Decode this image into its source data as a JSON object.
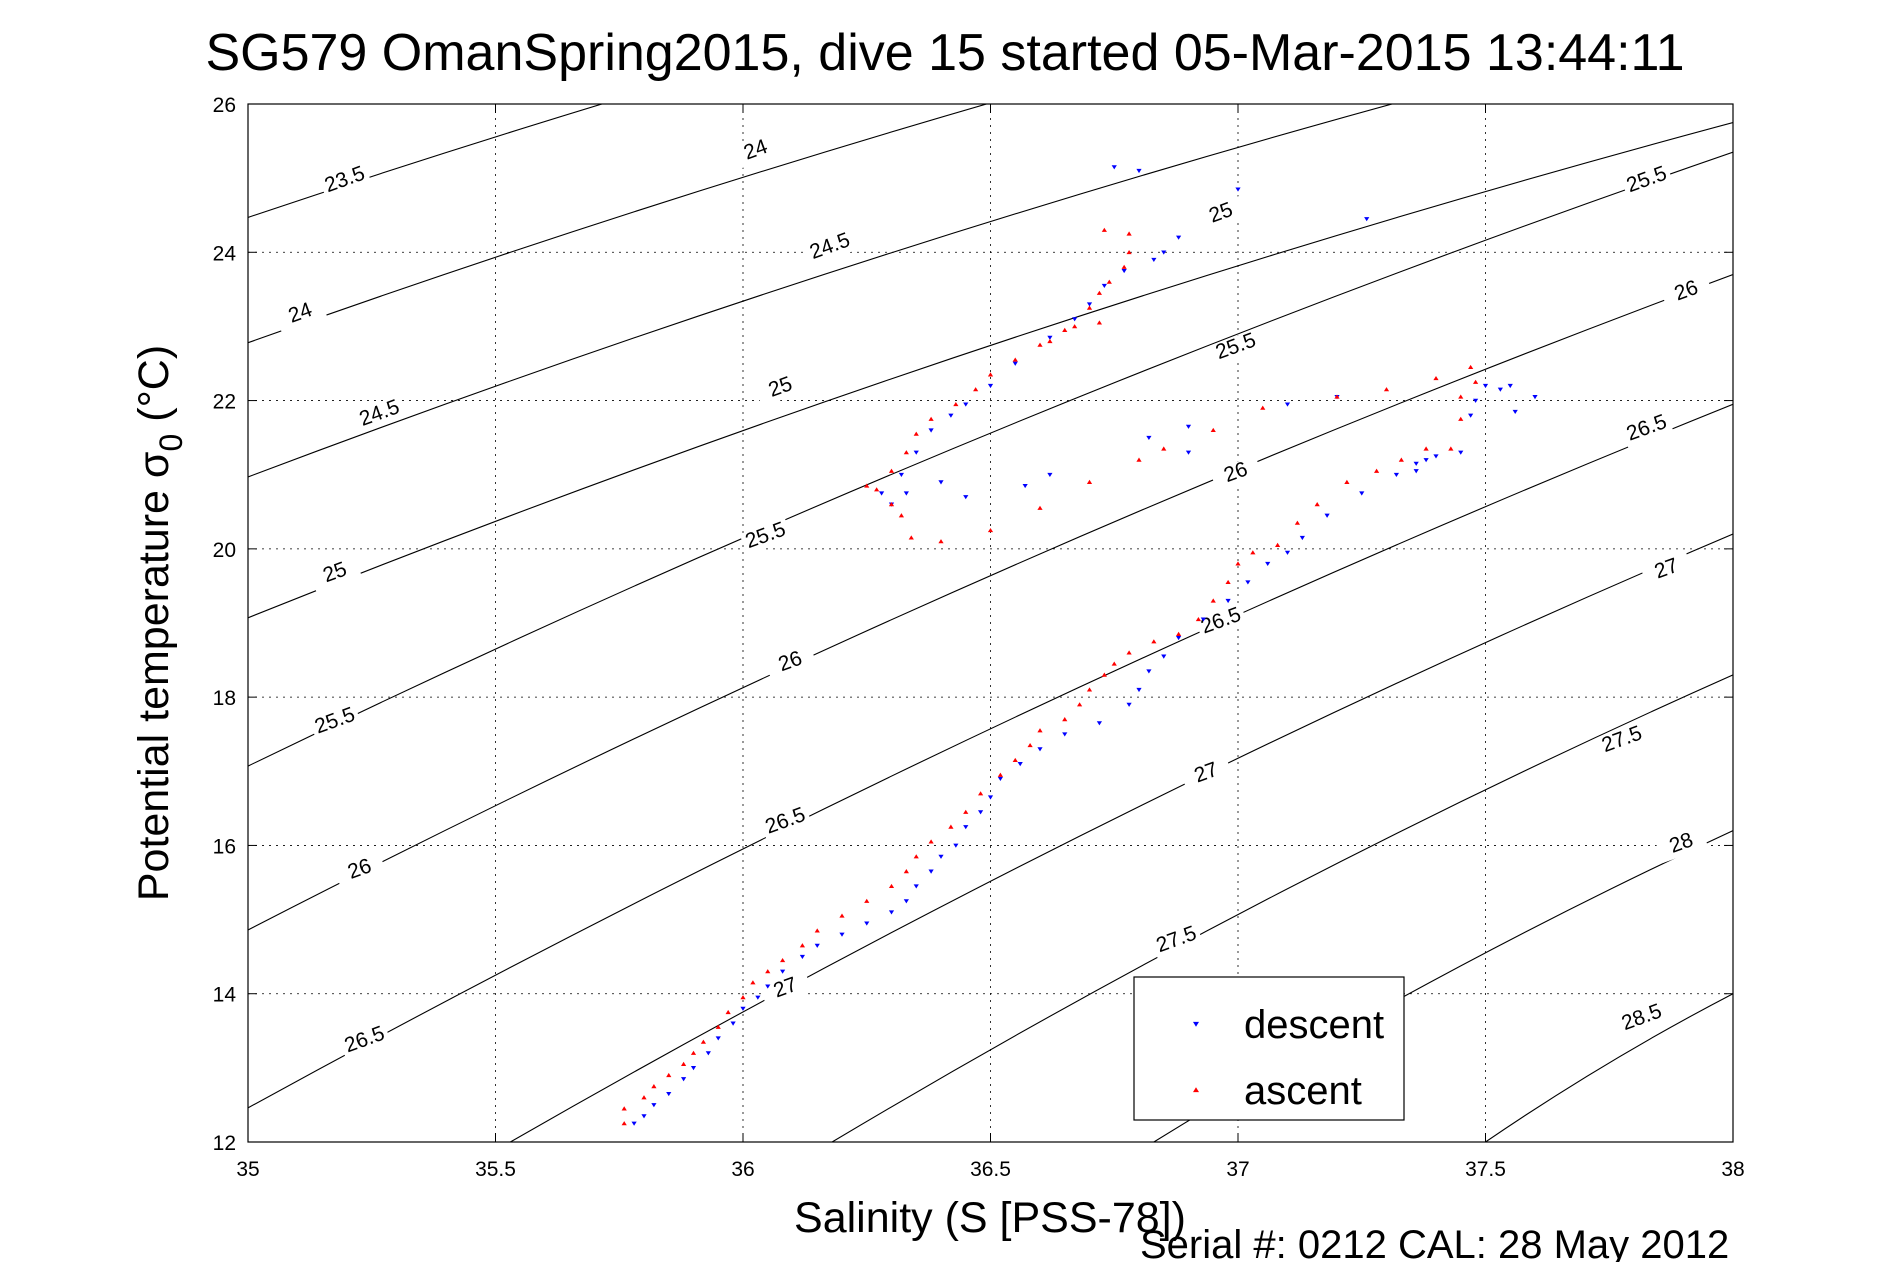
{
  "chart_data": {
    "type": "scatter",
    "title": "SG579 OmanSpring2015, dive 15 started 05-Mar-2015 13:44:11",
    "xlabel": "Salinity (S [PSS-78])",
    "ylabel_main": "Potential temperature σ",
    "ylabel_sub": "0",
    "ylabel_unit": "(°C)",
    "xlim": [
      35,
      38
    ],
    "ylim": [
      12,
      26
    ],
    "xticks": [
      35,
      35.5,
      36,
      36.5,
      37,
      37.5,
      38
    ],
    "xtick_labels": [
      "35",
      "35.5",
      "36",
      "36.5",
      "37",
      "37.5",
      "38"
    ],
    "yticks": [
      12,
      14,
      16,
      18,
      20,
      22,
      24,
      26
    ],
    "ytick_labels": [
      "12",
      "14",
      "16",
      "18",
      "20",
      "22",
      "24",
      "26"
    ],
    "grid": true,
    "legend_placement": "bottom-right",
    "contours": [
      {
        "level": "23.5",
        "points": [
          [
            35,
            24.47
          ],
          [
            38,
            29.9
          ]
        ]
      },
      {
        "level": "24",
        "points": [
          [
            35,
            22.78
          ],
          [
            38,
            28.6
          ]
        ]
      },
      {
        "level": "24.5",
        "points": [
          [
            35,
            20.97
          ],
          [
            38,
            27.2
          ]
        ]
      },
      {
        "level": "25",
        "points": [
          [
            35,
            19.07
          ],
          [
            38,
            25.75
          ]
        ]
      },
      {
        "level": "25.5",
        "points": [
          [
            35,
            17.07
          ],
          [
            38,
            25.35
          ]
        ]
      },
      {
        "level": "26",
        "points": [
          [
            35,
            14.86
          ],
          [
            38,
            23.7
          ]
        ]
      },
      {
        "level": "26.5",
        "points": [
          [
            35,
            12.46
          ],
          [
            38,
            21.95
          ]
        ]
      },
      {
        "level": "27",
        "points": [
          [
            35.53,
            12
          ],
          [
            38,
            20.2
          ]
        ]
      },
      {
        "level": "27.5",
        "points": [
          [
            36.18,
            12
          ],
          [
            38,
            18.3
          ]
        ]
      },
      {
        "level": "28",
        "points": [
          [
            36.83,
            12
          ],
          [
            38,
            16.2
          ]
        ]
      },
      {
        "level": "28.5",
        "points": [
          [
            37.5,
            12
          ],
          [
            38,
            14.0
          ]
        ]
      }
    ],
    "contour_labels": [
      {
        "text": "23.5",
        "x": 35.2,
        "y": 24.9
      },
      {
        "text": "24",
        "x": 36.03,
        "y": 25.3
      },
      {
        "text": "24",
        "x": 35.11,
        "y": 23.1
      },
      {
        "text": "24.5",
        "x": 36.18,
        "y": 24.0
      },
      {
        "text": "24.5",
        "x": 35.27,
        "y": 21.75
      },
      {
        "text": "25",
        "x": 36.97,
        "y": 24.45
      },
      {
        "text": "25",
        "x": 36.08,
        "y": 22.1
      },
      {
        "text": "25",
        "x": 35.18,
        "y": 19.6
      },
      {
        "text": "25.5",
        "x": 36.05,
        "y": 20.1
      },
      {
        "text": "25.5",
        "x": 37.0,
        "y": 22.65
      },
      {
        "text": "25.5",
        "x": 37.83,
        "y": 24.9
      },
      {
        "text": "25.5",
        "x": 35.18,
        "y": 17.6
      },
      {
        "text": "26",
        "x": 36.1,
        "y": 18.4
      },
      {
        "text": "26",
        "x": 37.0,
        "y": 20.95
      },
      {
        "text": "26",
        "x": 37.91,
        "y": 23.4
      },
      {
        "text": "26",
        "x": 35.23,
        "y": 15.6
      },
      {
        "text": "26.5",
        "x": 36.09,
        "y": 16.25
      },
      {
        "text": "26.5",
        "x": 36.97,
        "y": 18.95
      },
      {
        "text": "26.5",
        "x": 37.83,
        "y": 21.55
      },
      {
        "text": "26.5",
        "x": 35.24,
        "y": 13.3
      },
      {
        "text": "27",
        "x": 36.09,
        "y": 14.0
      },
      {
        "text": "27",
        "x": 36.94,
        "y": 16.9
      },
      {
        "text": "27",
        "x": 37.87,
        "y": 19.65
      },
      {
        "text": "27.5",
        "x": 36.88,
        "y": 14.65
      },
      {
        "text": "27.5",
        "x": 37.78,
        "y": 17.35
      },
      {
        "text": "28",
        "x": 37.9,
        "y": 15.95
      },
      {
        "text": "28.5",
        "x": 37.82,
        "y": 13.6
      }
    ],
    "series": [
      {
        "name": "descent",
        "color": "#0000ff",
        "marker": "triangle-down",
        "points": [
          [
            35.78,
            12.25
          ],
          [
            35.8,
            12.35
          ],
          [
            35.82,
            12.5
          ],
          [
            35.85,
            12.65
          ],
          [
            35.88,
            12.85
          ],
          [
            35.9,
            13.0
          ],
          [
            35.93,
            13.2
          ],
          [
            35.95,
            13.4
          ],
          [
            35.98,
            13.6
          ],
          [
            36.0,
            13.8
          ],
          [
            36.03,
            13.95
          ],
          [
            36.05,
            14.1
          ],
          [
            36.08,
            14.3
          ],
          [
            36.12,
            14.5
          ],
          [
            36.15,
            14.65
          ],
          [
            36.2,
            14.8
          ],
          [
            36.25,
            14.95
          ],
          [
            36.3,
            15.1
          ],
          [
            36.33,
            15.25
          ],
          [
            36.35,
            15.45
          ],
          [
            36.38,
            15.65
          ],
          [
            36.4,
            15.85
          ],
          [
            36.43,
            16.0
          ],
          [
            36.45,
            16.25
          ],
          [
            36.48,
            16.45
          ],
          [
            36.5,
            16.65
          ],
          [
            36.52,
            16.9
          ],
          [
            36.56,
            17.1
          ],
          [
            36.6,
            17.3
          ],
          [
            36.65,
            17.5
          ],
          [
            36.72,
            17.65
          ],
          [
            36.78,
            17.9
          ],
          [
            36.8,
            18.1
          ],
          [
            36.82,
            18.35
          ],
          [
            36.85,
            18.55
          ],
          [
            36.88,
            18.8
          ],
          [
            36.93,
            19.05
          ],
          [
            36.98,
            19.3
          ],
          [
            37.02,
            19.55
          ],
          [
            37.06,
            19.8
          ],
          [
            37.1,
            19.95
          ],
          [
            37.13,
            20.15
          ],
          [
            37.18,
            20.45
          ],
          [
            37.25,
            20.75
          ],
          [
            37.32,
            21.0
          ],
          [
            37.36,
            21.15
          ],
          [
            37.4,
            21.25
          ],
          [
            37.45,
            21.3
          ],
          [
            37.47,
            21.8
          ],
          [
            37.48,
            22.0
          ],
          [
            37.5,
            22.2
          ],
          [
            37.53,
            22.15
          ],
          [
            37.55,
            22.2
          ],
          [
            37.6,
            22.05
          ],
          [
            37.56,
            21.85
          ],
          [
            37.2,
            22.05
          ],
          [
            37.1,
            21.95
          ],
          [
            36.9,
            21.65
          ],
          [
            36.82,
            21.5
          ],
          [
            36.9,
            21.3
          ],
          [
            36.62,
            21.0
          ],
          [
            36.57,
            20.85
          ],
          [
            36.45,
            20.7
          ],
          [
            36.4,
            20.9
          ],
          [
            36.33,
            20.75
          ],
          [
            36.3,
            20.6
          ],
          [
            36.28,
            20.75
          ],
          [
            36.32,
            21.0
          ],
          [
            36.35,
            21.3
          ],
          [
            36.38,
            21.6
          ],
          [
            36.42,
            21.8
          ],
          [
            36.45,
            21.95
          ],
          [
            36.5,
            22.2
          ],
          [
            36.55,
            22.5
          ],
          [
            36.62,
            22.85
          ],
          [
            36.67,
            23.1
          ],
          [
            36.7,
            23.3
          ],
          [
            36.73,
            23.55
          ],
          [
            36.77,
            23.75
          ],
          [
            36.83,
            23.9
          ],
          [
            36.85,
            24.0
          ],
          [
            36.88,
            24.2
          ],
          [
            36.75,
            25.15
          ],
          [
            36.8,
            25.1
          ],
          [
            37.0,
            24.85
          ],
          [
            37.26,
            24.45
          ],
          [
            37.36,
            21.05
          ],
          [
            37.38,
            21.2
          ]
        ]
      },
      {
        "name": "ascent",
        "color": "#ff0000",
        "marker": "triangle-up",
        "points": [
          [
            35.76,
            12.25
          ],
          [
            35.76,
            12.45
          ],
          [
            35.8,
            12.6
          ],
          [
            35.82,
            12.75
          ],
          [
            35.85,
            12.9
          ],
          [
            35.88,
            13.05
          ],
          [
            35.9,
            13.2
          ],
          [
            35.92,
            13.35
          ],
          [
            35.95,
            13.55
          ],
          [
            35.97,
            13.75
          ],
          [
            36.0,
            13.95
          ],
          [
            36.02,
            14.15
          ],
          [
            36.05,
            14.3
          ],
          [
            36.08,
            14.45
          ],
          [
            36.12,
            14.65
          ],
          [
            36.15,
            14.85
          ],
          [
            36.2,
            15.05
          ],
          [
            36.25,
            15.25
          ],
          [
            36.3,
            15.45
          ],
          [
            36.33,
            15.65
          ],
          [
            36.35,
            15.85
          ],
          [
            36.38,
            16.05
          ],
          [
            36.42,
            16.25
          ],
          [
            36.45,
            16.45
          ],
          [
            36.48,
            16.7
          ],
          [
            36.52,
            16.95
          ],
          [
            36.55,
            17.15
          ],
          [
            36.58,
            17.35
          ],
          [
            36.6,
            17.55
          ],
          [
            36.65,
            17.7
          ],
          [
            36.68,
            17.9
          ],
          [
            36.7,
            18.1
          ],
          [
            36.73,
            18.3
          ],
          [
            36.75,
            18.45
          ],
          [
            36.78,
            18.6
          ],
          [
            36.83,
            18.75
          ],
          [
            36.88,
            18.85
          ],
          [
            36.92,
            19.05
          ],
          [
            36.95,
            19.3
          ],
          [
            36.98,
            19.55
          ],
          [
            37.0,
            19.8
          ],
          [
            37.03,
            19.95
          ],
          [
            37.08,
            20.05
          ],
          [
            37.12,
            20.35
          ],
          [
            37.16,
            20.6
          ],
          [
            37.22,
            20.9
          ],
          [
            37.28,
            21.05
          ],
          [
            37.33,
            21.2
          ],
          [
            37.38,
            21.35
          ],
          [
            37.43,
            21.35
          ],
          [
            37.45,
            21.75
          ],
          [
            37.45,
            22.05
          ],
          [
            37.48,
            22.25
          ],
          [
            37.47,
            22.45
          ],
          [
            37.4,
            22.3
          ],
          [
            37.3,
            22.15
          ],
          [
            37.2,
            22.05
          ],
          [
            37.05,
            21.9
          ],
          [
            36.95,
            21.6
          ],
          [
            36.85,
            21.35
          ],
          [
            36.8,
            21.2
          ],
          [
            36.7,
            20.9
          ],
          [
            36.6,
            20.55
          ],
          [
            36.5,
            20.25
          ],
          [
            36.4,
            20.1
          ],
          [
            36.34,
            20.15
          ],
          [
            36.32,
            20.45
          ],
          [
            36.3,
            20.6
          ],
          [
            36.27,
            20.8
          ],
          [
            36.25,
            20.85
          ],
          [
            36.3,
            21.05
          ],
          [
            36.33,
            21.3
          ],
          [
            36.35,
            21.55
          ],
          [
            36.38,
            21.75
          ],
          [
            36.43,
            21.95
          ],
          [
            36.47,
            22.15
          ],
          [
            36.5,
            22.35
          ],
          [
            36.55,
            22.55
          ],
          [
            36.62,
            22.8
          ],
          [
            36.67,
            23.0
          ],
          [
            36.7,
            23.25
          ],
          [
            36.72,
            23.45
          ],
          [
            36.74,
            23.6
          ],
          [
            36.77,
            23.8
          ],
          [
            36.78,
            24.0
          ],
          [
            36.73,
            24.3
          ],
          [
            36.78,
            24.25
          ],
          [
            36.72,
            23.05
          ],
          [
            36.65,
            22.95
          ],
          [
            36.6,
            22.75
          ]
        ]
      }
    ],
    "legend": [
      {
        "label": "descent",
        "color": "#0000ff",
        "marker": "triangle-down"
      },
      {
        "label": "ascent",
        "color": "#ff0000",
        "marker": "triangle-up"
      }
    ]
  },
  "footer": {
    "text": "Serial #: 0212  CAL: 28 May 2012"
  }
}
